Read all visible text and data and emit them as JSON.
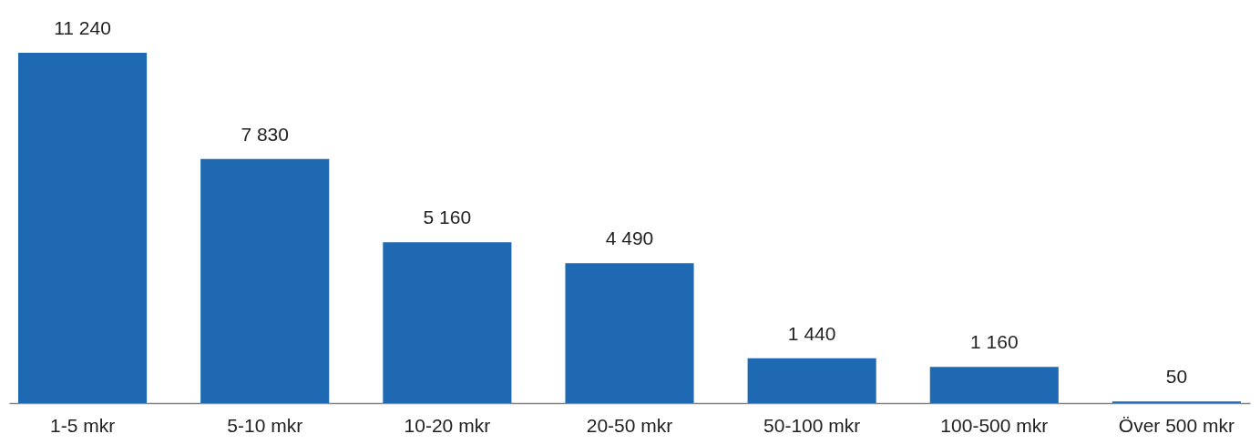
{
  "chart_data": {
    "type": "bar",
    "categories": [
      "1-5 mkr",
      "5-10 mkr",
      "10-20 mkr",
      "20-50 mkr",
      "50-100 mkr",
      "100-500 mkr",
      "Över 500 mkr"
    ],
    "values": [
      11240,
      7830,
      5160,
      4490,
      1440,
      1160,
      50
    ],
    "value_labels": [
      "11 240",
      "7 830",
      "5 160",
      "4 490",
      "1 440",
      "1 160",
      "50"
    ],
    "color": "#1f69b3"
  }
}
